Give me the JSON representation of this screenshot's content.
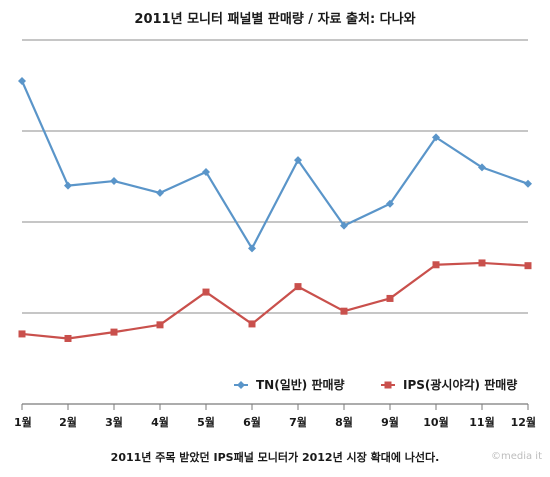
{
  "chart_data": {
    "type": "line",
    "title": "2011년 모니터 패널별 판매량 / 자료 출처: 다나와",
    "xlabel": "",
    "ylabel": "",
    "categories": [
      "1월",
      "2월",
      "3월",
      "4월",
      "5월",
      "6월",
      "7월",
      "8월",
      "9월",
      "10월",
      "11월",
      "12월"
    ],
    "ylim": [
      0,
      4
    ],
    "grid": true,
    "legend_position": "bottom-right",
    "series": [
      {
        "name": "TN(일반) 판매량",
        "color": "#5a95c9",
        "marker": "diamond",
        "values": [
          3.55,
          2.4,
          2.45,
          2.32,
          2.55,
          1.71,
          2.68,
          1.96,
          2.2,
          2.93,
          2.6,
          2.42
        ]
      },
      {
        "name": "IPS(광시야각) 판매량",
        "color": "#c9504c",
        "marker": "square",
        "values": [
          0.77,
          0.72,
          0.79,
          0.87,
          1.23,
          0.88,
          1.29,
          1.02,
          1.16,
          1.53,
          1.55,
          1.52
        ]
      }
    ]
  },
  "caption": "2011년 주목 받았던 IPS패널 모니터가 2012년 시장 확대에 나선다.",
  "watermark": "©media it"
}
